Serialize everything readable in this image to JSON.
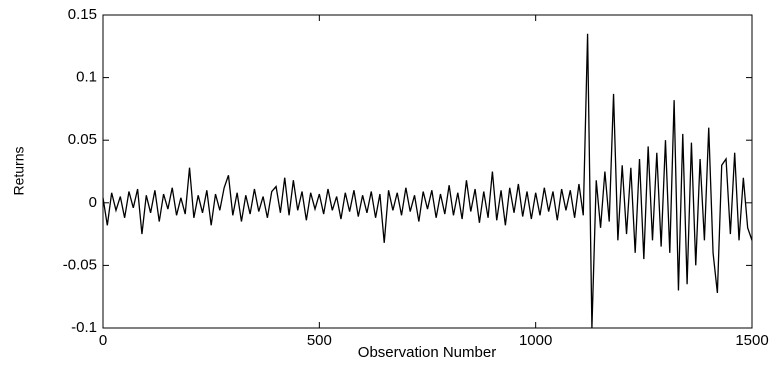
{
  "chart_data": {
    "type": "line",
    "x_label": "Observation Number",
    "y_label": "Returns",
    "xlim": [
      0,
      1500
    ],
    "xticks": [
      0,
      500,
      1000,
      1500
    ],
    "ylim": [
      -0.1,
      0.15
    ],
    "yticks": [
      -0.1,
      -0.05,
      0,
      0.05,
      0.1,
      0.15
    ],
    "color": "#000000",
    "x": [
      0,
      10,
      20,
      30,
      40,
      50,
      60,
      70,
      80,
      90,
      100,
      110,
      120,
      130,
      140,
      150,
      160,
      170,
      180,
      190,
      200,
      210,
      220,
      230,
      240,
      250,
      260,
      270,
      280,
      290,
      300,
      310,
      320,
      330,
      340,
      350,
      360,
      370,
      380,
      390,
      400,
      410,
      420,
      430,
      440,
      450,
      460,
      470,
      480,
      490,
      500,
      510,
      520,
      530,
      540,
      550,
      560,
      570,
      580,
      590,
      600,
      610,
      620,
      630,
      640,
      650,
      660,
      670,
      680,
      690,
      700,
      710,
      720,
      730,
      740,
      750,
      760,
      770,
      780,
      790,
      800,
      810,
      820,
      830,
      840,
      850,
      860,
      870,
      880,
      890,
      900,
      910,
      920,
      930,
      940,
      950,
      960,
      970,
      980,
      990,
      1000,
      1010,
      1020,
      1030,
      1040,
      1050,
      1060,
      1070,
      1080,
      1090,
      1100,
      1110,
      1120,
      1130,
      1140,
      1150,
      1160,
      1170,
      1180,
      1190,
      1200,
      1210,
      1220,
      1230,
      1240,
      1250,
      1260,
      1270,
      1280,
      1290,
      1300,
      1310,
      1320,
      1330,
      1340,
      1350,
      1360,
      1370,
      1380,
      1390,
      1400,
      1410,
      1420,
      1430,
      1440,
      1450,
      1460,
      1470,
      1480,
      1490,
      1500
    ],
    "values": [
      0.004,
      -0.018,
      0.008,
      -0.006,
      0.005,
      -0.012,
      0.009,
      -0.004,
      0.011,
      -0.025,
      0.006,
      -0.008,
      0.01,
      -0.015,
      0.007,
      -0.005,
      0.012,
      -0.01,
      0.004,
      -0.009,
      0.028,
      -0.012,
      0.006,
      -0.008,
      0.01,
      -0.018,
      0.007,
      -0.006,
      0.012,
      0.022,
      -0.01,
      0.008,
      -0.015,
      0.006,
      -0.009,
      0.011,
      -0.007,
      0.005,
      -0.012,
      0.009,
      0.013,
      -0.008,
      0.02,
      -0.01,
      0.018,
      -0.006,
      0.009,
      -0.014,
      0.008,
      -0.005,
      0.007,
      -0.009,
      0.011,
      -0.006,
      0.005,
      -0.013,
      0.008,
      -0.007,
      0.01,
      -0.011,
      0.006,
      -0.008,
      0.009,
      -0.012,
      0.007,
      -0.032,
      0.01,
      -0.006,
      0.008,
      -0.01,
      0.012,
      -0.007,
      0.006,
      -0.015,
      0.009,
      -0.005,
      0.01,
      -0.012,
      0.007,
      -0.009,
      0.014,
      -0.01,
      0.008,
      -0.013,
      0.018,
      -0.007,
      0.011,
      -0.016,
      0.009,
      -0.012,
      0.025,
      -0.014,
      0.01,
      -0.018,
      0.012,
      -0.008,
      0.015,
      -0.011,
      0.009,
      -0.013,
      0.008,
      -0.01,
      0.012,
      -0.007,
      0.009,
      -0.014,
      0.011,
      -0.006,
      0.01,
      -0.012,
      0.015,
      -0.01,
      0.135,
      -0.1,
      0.018,
      -0.02,
      0.025,
      -0.015,
      0.087,
      -0.03,
      0.03,
      -0.025,
      0.028,
      -0.04,
      0.035,
      -0.045,
      0.045,
      -0.03,
      0.04,
      -0.035,
      0.05,
      -0.04,
      0.082,
      -0.07,
      0.055,
      -0.065,
      0.048,
      -0.05,
      0.035,
      -0.03,
      0.06,
      -0.04,
      -0.072,
      0.03,
      0.035,
      -0.025,
      0.04,
      -0.03,
      0.02,
      -0.02,
      -0.03
    ]
  }
}
